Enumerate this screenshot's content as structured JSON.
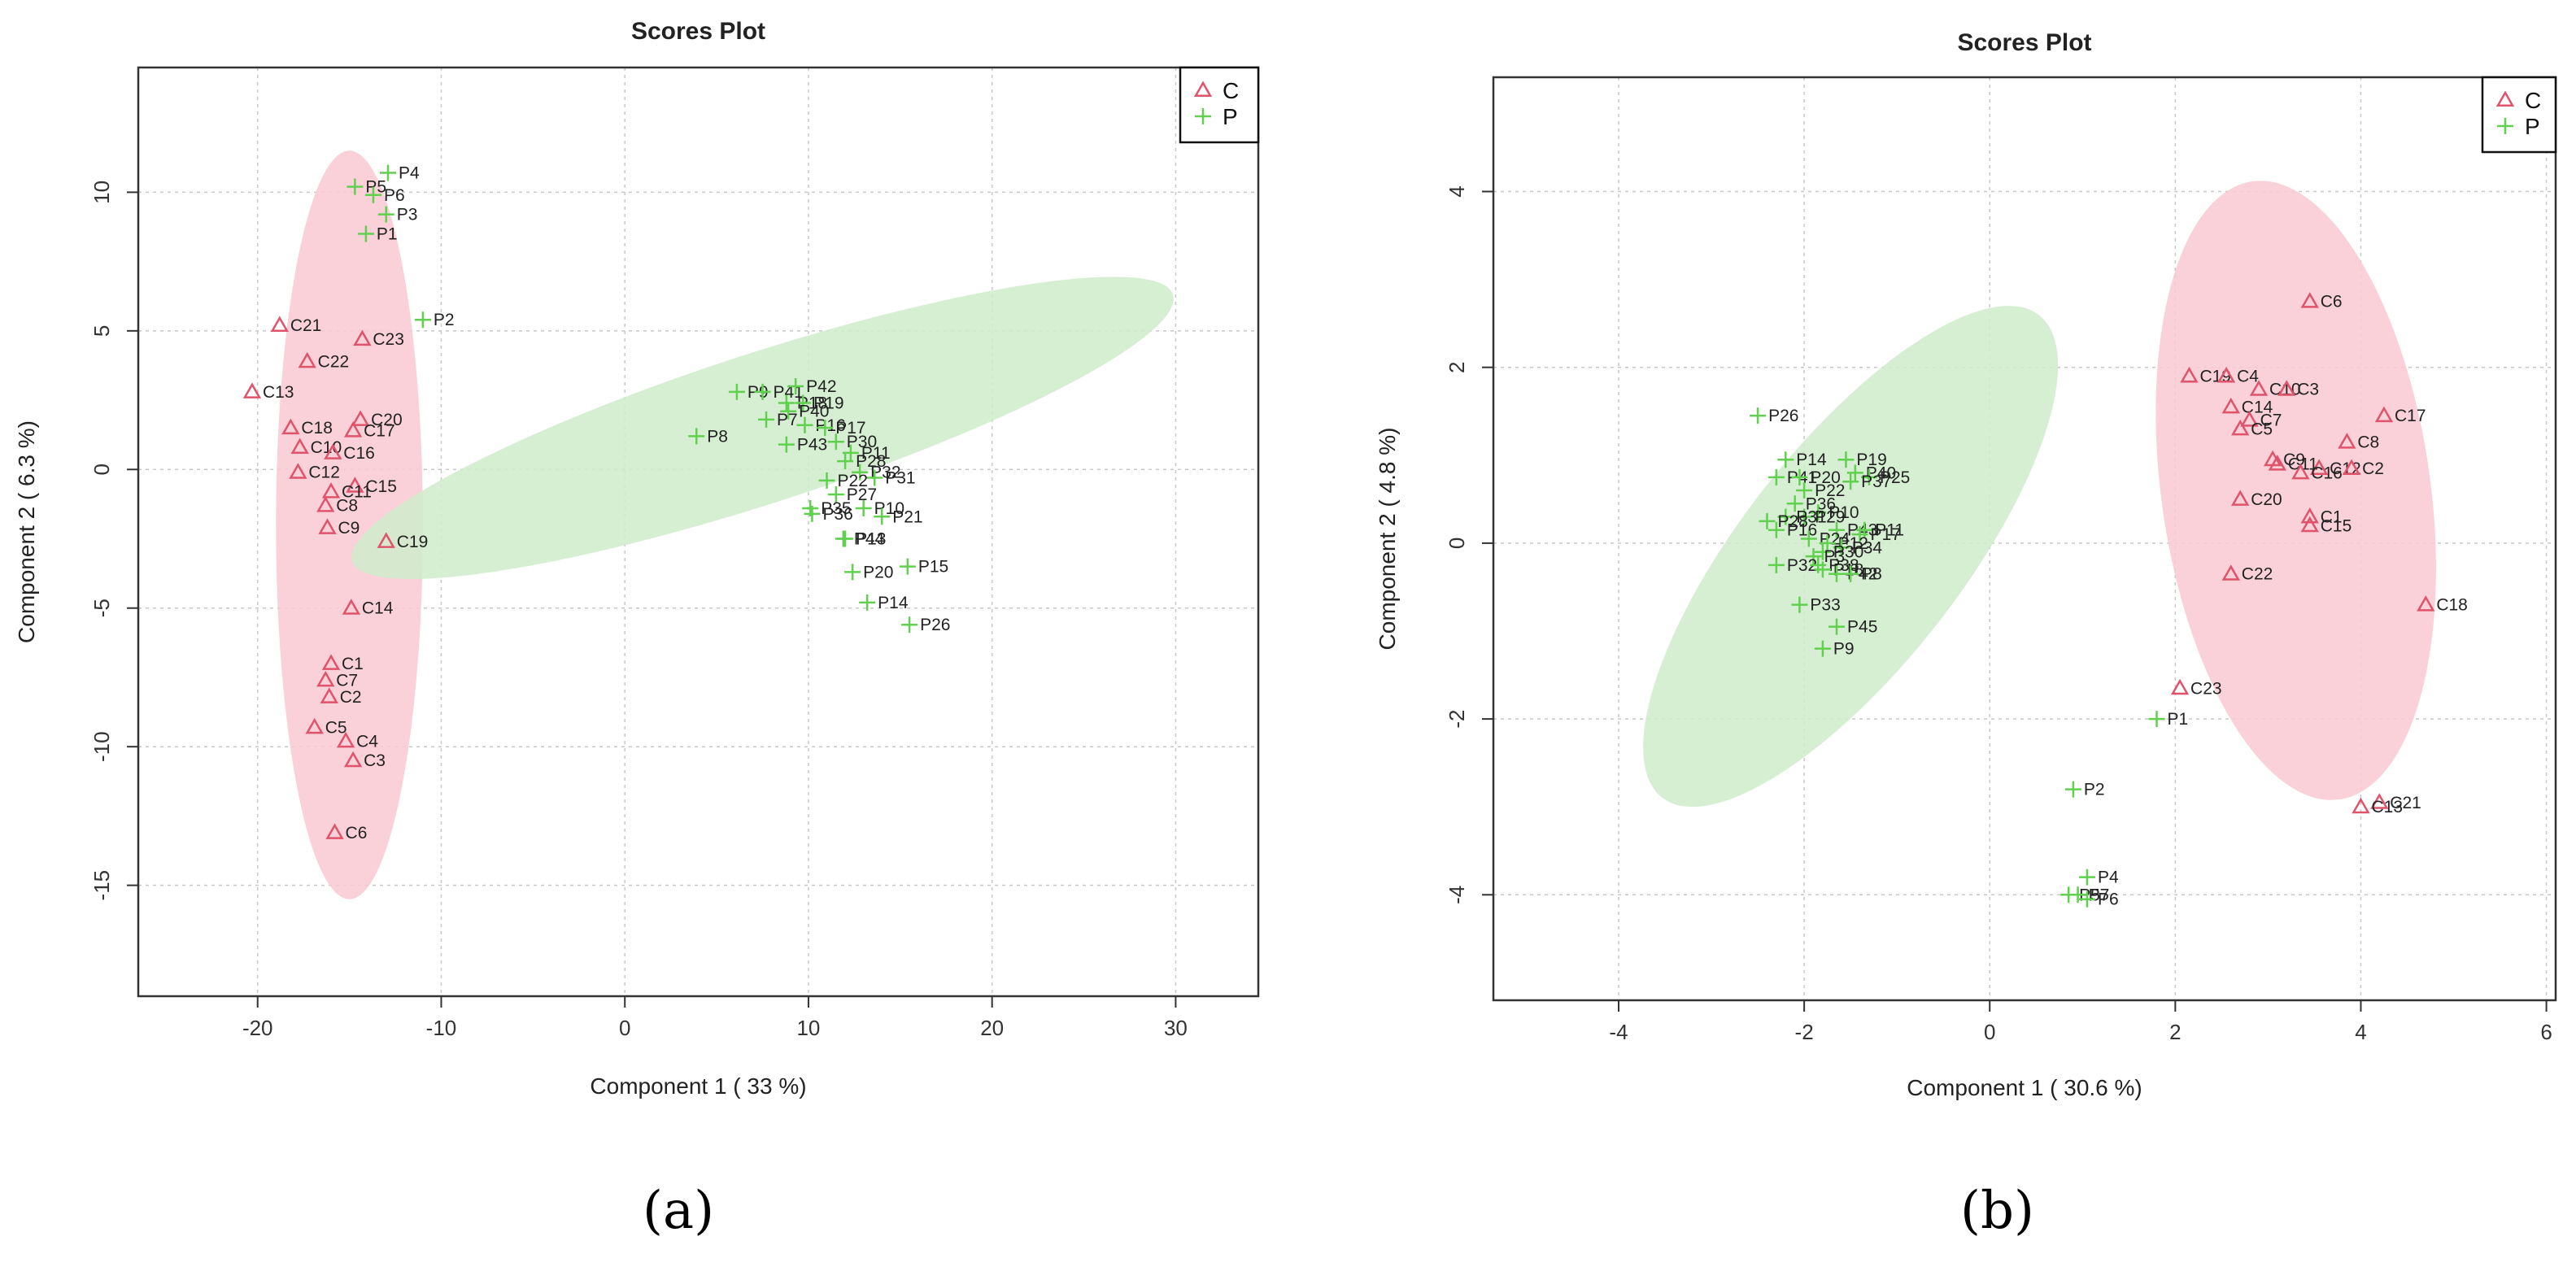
{
  "panel_labels": [
    "(a)",
    "(b)"
  ],
  "colors": {
    "C": "#df536b",
    "P": "#61d04f",
    "ellipse_C": "#f9c8d2",
    "ellipse_P": "#cfeccb",
    "grid": "#c8c8c8",
    "axis": "#333333"
  },
  "chart_data": [
    {
      "type": "scatter",
      "title": "Scores Plot",
      "xlabel": "Component 1 ( 33 %)",
      "ylabel": "Component 2 ( 6.3 %)",
      "xlim": [
        -26.5,
        34.5
      ],
      "ylim": [
        -19,
        14.5
      ],
      "xticks": [
        -20,
        -10,
        0,
        10,
        20,
        30
      ],
      "yticks": [
        10,
        5,
        0,
        -5,
        -10,
        -15
      ],
      "legend": {
        "position": "top-right",
        "entries": [
          {
            "name": "C",
            "symbol": "triangle"
          },
          {
            "name": "P",
            "symbol": "plus"
          }
        ]
      },
      "ellipses": [
        {
          "group": "C",
          "center": [
            -15.0,
            -2.0
          ],
          "rx": 4.0,
          "ry": 13.5,
          "rotation_deg": 0
        },
        {
          "group": "P",
          "center": [
            7.5,
            1.5
          ],
          "rx": 23.5,
          "ry": 2.7,
          "rotation_deg": -18
        }
      ],
      "series": [
        {
          "name": "C",
          "points": [
            {
              "label": "C21",
              "x": -18.8,
              "y": 5.2
            },
            {
              "label": "C23",
              "x": -14.3,
              "y": 4.7
            },
            {
              "label": "C22",
              "x": -17.3,
              "y": 3.9
            },
            {
              "label": "C13",
              "x": -20.3,
              "y": 2.8
            },
            {
              "label": "C20",
              "x": -14.4,
              "y": 1.8
            },
            {
              "label": "C18",
              "x": -18.2,
              "y": 1.5
            },
            {
              "label": "C17",
              "x": -14.8,
              "y": 1.4
            },
            {
              "label": "C10",
              "x": -17.7,
              "y": 0.8
            },
            {
              "label": "C16",
              "x": -15.9,
              "y": 0.6
            },
            {
              "label": "C12",
              "x": -17.8,
              "y": -0.1
            },
            {
              "label": "C15",
              "x": -14.7,
              "y": -0.6
            },
            {
              "label": "C11",
              "x": -16.0,
              "y": -0.8
            },
            {
              "label": "C8",
              "x": -16.3,
              "y": -1.3
            },
            {
              "label": "C9",
              "x": -16.2,
              "y": -2.1
            },
            {
              "label": "C19",
              "x": -13.0,
              "y": -2.6
            },
            {
              "label": "C14",
              "x": -14.9,
              "y": -5.0
            },
            {
              "label": "C1",
              "x": -16.0,
              "y": -7.0
            },
            {
              "label": "C7",
              "x": -16.3,
              "y": -7.6
            },
            {
              "label": "C2",
              "x": -16.1,
              "y": -8.2
            },
            {
              "label": "C5",
              "x": -16.9,
              "y": -9.3
            },
            {
              "label": "C4",
              "x": -15.2,
              "y": -9.8
            },
            {
              "label": "C3",
              "x": -14.8,
              "y": -10.5
            },
            {
              "label": "C6",
              "x": -15.8,
              "y": -13.1
            }
          ]
        },
        {
          "name": "P",
          "points": [
            {
              "label": "P4",
              "x": -12.9,
              "y": 10.7
            },
            {
              "label": "P5",
              "x": -14.7,
              "y": 10.2
            },
            {
              "label": "P6",
              "x": -13.7,
              "y": 9.9
            },
            {
              "label": "P3",
              "x": -13.0,
              "y": 9.2
            },
            {
              "label": "P1",
              "x": -14.1,
              "y": 8.5
            },
            {
              "label": "P2",
              "x": -11.0,
              "y": 5.4
            },
            {
              "label": "P9",
              "x": 6.1,
              "y": 2.8
            },
            {
              "label": "P41",
              "x": 7.5,
              "y": 2.8
            },
            {
              "label": "P42",
              "x": 9.3,
              "y": 3.0
            },
            {
              "label": "P18",
              "x": 8.8,
              "y": 2.4
            },
            {
              "label": "P19",
              "x": 9.7,
              "y": 2.4
            },
            {
              "label": "P40",
              "x": 8.9,
              "y": 2.1
            },
            {
              "label": "P7",
              "x": 7.7,
              "y": 1.8
            },
            {
              "label": "P16",
              "x": 9.8,
              "y": 1.6
            },
            {
              "label": "P8",
              "x": 3.9,
              "y": 1.2
            },
            {
              "label": "P43",
              "x": 8.8,
              "y": 0.9
            },
            {
              "label": "P17",
              "x": 10.9,
              "y": 1.5
            },
            {
              "label": "P30",
              "x": 11.5,
              "y": 1.0
            },
            {
              "label": "P11",
              "x": 12.3,
              "y": 0.6
            },
            {
              "label": "P28",
              "x": 12.0,
              "y": 0.3
            },
            {
              "label": "P32",
              "x": 12.8,
              "y": -0.1
            },
            {
              "label": "P31",
              "x": 13.6,
              "y": -0.3
            },
            {
              "label": "P22",
              "x": 11.0,
              "y": -0.4
            },
            {
              "label": "P27",
              "x": 11.5,
              "y": -0.9
            },
            {
              "label": "P35",
              "x": 10.1,
              "y": -1.4
            },
            {
              "label": "P36",
              "x": 10.2,
              "y": -1.6
            },
            {
              "label": "P10",
              "x": 13.0,
              "y": -1.4
            },
            {
              "label": "P21",
              "x": 14.0,
              "y": -1.7
            },
            {
              "label": "P44",
              "x": 11.9,
              "y": -2.5
            },
            {
              "label": "P13",
              "x": 12.0,
              "y": -2.5
            },
            {
              "label": "P20",
              "x": 12.4,
              "y": -3.7
            },
            {
              "label": "P15",
              "x": 15.4,
              "y": -3.5
            },
            {
              "label": "P14",
              "x": 13.2,
              "y": -4.8
            },
            {
              "label": "P26",
              "x": 15.5,
              "y": -5.6
            }
          ]
        }
      ]
    },
    {
      "type": "scatter",
      "title": "Scores Plot",
      "xlabel": "Component 1 ( 30.6 %)",
      "ylabel": "Component 2 ( 4.8 %)",
      "xlim": [
        -5.35,
        6.1
      ],
      "ylim": [
        -5.2,
        5.3
      ],
      "xticks": [
        -4,
        -2,
        0,
        2,
        4,
        6
      ],
      "yticks": [
        4,
        2,
        0,
        -2,
        -4
      ],
      "legend": {
        "position": "top-right",
        "entries": [
          {
            "name": "C",
            "symbol": "triangle"
          },
          {
            "name": "P",
            "symbol": "plus"
          }
        ]
      },
      "ellipses": [
        {
          "group": "C",
          "center": [
            3.3,
            0.6
          ],
          "rx": 1.45,
          "ry": 3.55,
          "rotation_deg": -8
        },
        {
          "group": "P",
          "center": [
            -1.5,
            -0.15
          ],
          "rx": 3.3,
          "ry": 1.25,
          "rotation_deg": -52
        }
      ],
      "series": [
        {
          "name": "C",
          "points": [
            {
              "label": "C6",
              "x": 3.45,
              "y": 2.75
            },
            {
              "label": "C19",
              "x": 2.15,
              "y": 1.9
            },
            {
              "label": "C4",
              "x": 2.55,
              "y": 1.9
            },
            {
              "label": "C10",
              "x": 2.9,
              "y": 1.75
            },
            {
              "label": "C3",
              "x": 3.2,
              "y": 1.75
            },
            {
              "label": "C14",
              "x": 2.6,
              "y": 1.55
            },
            {
              "label": "C17",
              "x": 4.25,
              "y": 1.45
            },
            {
              "label": "C7",
              "x": 2.8,
              "y": 1.4
            },
            {
              "label": "C5",
              "x": 2.7,
              "y": 1.3
            },
            {
              "label": "C8",
              "x": 3.85,
              "y": 1.15
            },
            {
              "label": "C9",
              "x": 3.05,
              "y": 0.95
            },
            {
              "label": "C11",
              "x": 3.1,
              "y": 0.9
            },
            {
              "label": "C12",
              "x": 3.55,
              "y": 0.85
            },
            {
              "label": "C2",
              "x": 3.9,
              "y": 0.85
            },
            {
              "label": "C16",
              "x": 3.35,
              "y": 0.8
            },
            {
              "label": "C20",
              "x": 2.7,
              "y": 0.5
            },
            {
              "label": "C1",
              "x": 3.45,
              "y": 0.3
            },
            {
              "label": "C15",
              "x": 3.45,
              "y": 0.2
            },
            {
              "label": "C22",
              "x": 2.6,
              "y": -0.35
            },
            {
              "label": "C18",
              "x": 4.7,
              "y": -0.7
            },
            {
              "label": "C23",
              "x": 2.05,
              "y": -1.65
            },
            {
              "label": "C21",
              "x": 4.2,
              "y": -2.95
            },
            {
              "label": "C13",
              "x": 4.0,
              "y": -3.0
            }
          ]
        },
        {
          "name": "P",
          "points": [
            {
              "label": "P26",
              "x": -2.5,
              "y": 1.45
            },
            {
              "label": "P14",
              "x": -2.2,
              "y": 0.95
            },
            {
              "label": "P19",
              "x": -1.55,
              "y": 0.95
            },
            {
              "label": "P41",
              "x": -2.3,
              "y": 0.75
            },
            {
              "label": "P40",
              "x": -1.45,
              "y": 0.8
            },
            {
              "label": "P25",
              "x": -1.3,
              "y": 0.75
            },
            {
              "label": "P37",
              "x": -1.5,
              "y": 0.7
            },
            {
              "label": "P20",
              "x": -2.05,
              "y": 0.75
            },
            {
              "label": "P22",
              "x": -2.0,
              "y": 0.6
            },
            {
              "label": "P36",
              "x": -2.1,
              "y": 0.45
            },
            {
              "label": "P10",
              "x": -1.85,
              "y": 0.35
            },
            {
              "label": "P29",
              "x": -2.0,
              "y": 0.3
            },
            {
              "label": "P31",
              "x": -2.2,
              "y": 0.3
            },
            {
              "label": "P28",
              "x": -2.4,
              "y": 0.25
            },
            {
              "label": "P16",
              "x": -2.3,
              "y": 0.15
            },
            {
              "label": "P43",
              "x": -1.65,
              "y": 0.15
            },
            {
              "label": "P11",
              "x": -1.35,
              "y": 0.15
            },
            {
              "label": "P17",
              "x": -1.4,
              "y": 0.1
            },
            {
              "label": "P24",
              "x": -1.95,
              "y": 0.05
            },
            {
              "label": "P12",
              "x": -1.75,
              "y": 0.0
            },
            {
              "label": "P34",
              "x": -1.6,
              "y": -0.05
            },
            {
              "label": "P30",
              "x": -1.8,
              "y": -0.1
            },
            {
              "label": "P3",
              "x": -1.9,
              "y": -0.15
            },
            {
              "label": "P32",
              "x": -2.3,
              "y": -0.25
            },
            {
              "label": "P38",
              "x": -1.85,
              "y": -0.25
            },
            {
              "label": "P18",
              "x": -1.8,
              "y": -0.3
            },
            {
              "label": "P42",
              "x": -1.65,
              "y": -0.35
            },
            {
              "label": "P8",
              "x": -1.5,
              "y": -0.35
            },
            {
              "label": "P33",
              "x": -2.05,
              "y": -0.7
            },
            {
              "label": "P45",
              "x": -1.65,
              "y": -0.95
            },
            {
              "label": "P9",
              "x": -1.8,
              "y": -1.2
            },
            {
              "label": "P1",
              "x": 1.8,
              "y": -2.0
            },
            {
              "label": "P2",
              "x": 0.9,
              "y": -2.8
            },
            {
              "label": "P4",
              "x": 1.05,
              "y": -3.8
            },
            {
              "label": "P5",
              "x": 0.85,
              "y": -4.0
            },
            {
              "label": "P7",
              "x": 0.95,
              "y": -4.0
            },
            {
              "label": "P6",
              "x": 1.05,
              "y": -4.05
            }
          ]
        }
      ]
    }
  ]
}
